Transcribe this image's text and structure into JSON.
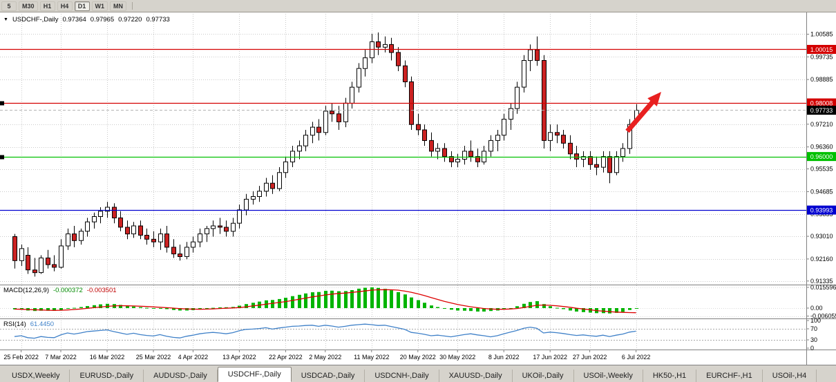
{
  "toolbar": {
    "periods": [
      {
        "label": "5",
        "active": false
      },
      {
        "label": "M30",
        "active": false
      },
      {
        "label": "H1",
        "active": false
      },
      {
        "label": "H4",
        "active": false
      },
      {
        "label": "D1",
        "active": true
      },
      {
        "label": "W1",
        "active": false
      },
      {
        "label": "MN",
        "active": false
      }
    ]
  },
  "chart_header": {
    "symbol_label": "USDCHF-,Daily",
    "open": "0.97364",
    "high": "0.97965",
    "low": "0.97220",
    "close": "0.97733"
  },
  "indicators": {
    "macd": {
      "label": "MACD(12,26,9)",
      "value_main": "-0.000372",
      "value_signal": "-0.003501",
      "axis_labels": [
        "0.015596",
        "0.00",
        "-0.006055"
      ],
      "histogram_color": "#00b400",
      "signal_color": "#dd0000"
    },
    "rsi": {
      "label": "RSI(14)",
      "value": "61.4450",
      "axis_labels": [
        "100",
        "70",
        "30",
        "0"
      ],
      "levels": [
        70,
        30
      ],
      "line_color": "#3e80c8"
    }
  },
  "tabs": {
    "items": [
      "USDX,Weekly",
      "EURUSD-,Daily",
      "AUDUSD-,Daily",
      "USDCHF-,Daily",
      "USDCAD-,Daily",
      "USDCNH-,Daily",
      "XAUUSD-,Daily",
      "UKOil-,Daily",
      "USOil-,Weekly",
      "HK50-,H1",
      "EURCHF-,H1",
      "USOil-,H4"
    ],
    "active_index": 3
  },
  "chart_data": {
    "type": "candlestick",
    "symbol": "USDCHF-,Daily",
    "timeframe": "Daily",
    "colors": {
      "bull": "#ffffff",
      "bear": "#cc2222",
      "wick": "#000000",
      "grid": "#c9c9c9"
    },
    "price_axis": {
      "labels": [
        "1.00585",
        "0.99735",
        "0.98885",
        "0.97210",
        "0.96360",
        "0.95535",
        "0.94685",
        "0.93835",
        "0.93010",
        "0.92160",
        "0.91335"
      ],
      "view_max": 1.014,
      "view_min": 0.912
    },
    "x_ticks": [
      {
        "label": "25 Feb 2022",
        "index": 1
      },
      {
        "label": "7 Mar 2022",
        "index": 7
      },
      {
        "label": "16 Mar 2022",
        "index": 14
      },
      {
        "label": "25 Mar 2022",
        "index": 21
      },
      {
        "label": "4 Apr 2022",
        "index": 27
      },
      {
        "label": "13 Apr 2022",
        "index": 34
      },
      {
        "label": "22 Apr 2022",
        "index": 41
      },
      {
        "label": "2 May 2022",
        "index": 47
      },
      {
        "label": "11 May 2022",
        "index": 54
      },
      {
        "label": "20 May 2022",
        "index": 61
      },
      {
        "label": "30 May 2022",
        "index": 67
      },
      {
        "label": "8 Jun 2022",
        "index": 74
      },
      {
        "label": "17 Jun 2022",
        "index": 81
      },
      {
        "label": "27 Jun 2022",
        "index": 87
      },
      {
        "label": "6 Jul 2022",
        "index": 94
      }
    ],
    "hlines": [
      {
        "price": 1.00015,
        "label": "1.00015",
        "color": "#d40000",
        "handles": false
      },
      {
        "price": 0.98008,
        "label": "0.98008",
        "color": "#d40000",
        "handles": true
      },
      {
        "price": 0.96,
        "label": "0.96000",
        "color": "#00c000",
        "handles": true
      },
      {
        "price": 0.93993,
        "label": "0.93993",
        "color": "#0000d0",
        "handles": false
      }
    ],
    "current_price": {
      "value": 0.97733,
      "label": "0.97733",
      "box_color": "#000000"
    },
    "arrow_annotation": {
      "color": "#e82020",
      "description": "red up arrow toward 0.98008 resistance"
    },
    "candles": [
      [
        0.93,
        0.931,
        0.918,
        0.921
      ],
      [
        0.921,
        0.927,
        0.919,
        0.9255
      ],
      [
        0.923,
        0.926,
        0.916,
        0.9175
      ],
      [
        0.9175,
        0.922,
        0.915,
        0.9165
      ],
      [
        0.9165,
        0.923,
        0.916,
        0.922
      ],
      [
        0.922,
        0.925,
        0.918,
        0.9195
      ],
      [
        0.9195,
        0.923,
        0.917,
        0.9185
      ],
      [
        0.9185,
        0.929,
        0.918,
        0.9265
      ],
      [
        0.9265,
        0.933,
        0.925,
        0.931
      ],
      [
        0.931,
        0.934,
        0.926,
        0.9285
      ],
      [
        0.9285,
        0.933,
        0.927,
        0.932
      ],
      [
        0.932,
        0.937,
        0.93,
        0.9355
      ],
      [
        0.9355,
        0.939,
        0.933,
        0.9375
      ],
      [
        0.9375,
        0.941,
        0.935,
        0.9395
      ],
      [
        0.9395,
        0.943,
        0.937,
        0.941
      ],
      [
        0.941,
        0.9425,
        0.935,
        0.937
      ],
      [
        0.937,
        0.9395,
        0.932,
        0.9335
      ],
      [
        0.9335,
        0.936,
        0.929,
        0.931
      ],
      [
        0.931,
        0.9355,
        0.9295,
        0.934
      ],
      [
        0.934,
        0.936,
        0.929,
        0.9305
      ],
      [
        0.9305,
        0.933,
        0.927,
        0.929
      ],
      [
        0.929,
        0.932,
        0.926,
        0.928
      ],
      [
        0.928,
        0.933,
        0.925,
        0.931
      ],
      [
        0.931,
        0.934,
        0.924,
        0.926
      ],
      [
        0.926,
        0.929,
        0.922,
        0.9235
      ],
      [
        0.9235,
        0.927,
        0.921,
        0.9225
      ],
      [
        0.9225,
        0.928,
        0.9215,
        0.926
      ],
      [
        0.926,
        0.93,
        0.924,
        0.928
      ],
      [
        0.928,
        0.933,
        0.926,
        0.931
      ],
      [
        0.931,
        0.934,
        0.928,
        0.933
      ],
      [
        0.933,
        0.936,
        0.93,
        0.934
      ],
      [
        0.934,
        0.937,
        0.931,
        0.9335
      ],
      [
        0.9335,
        0.936,
        0.93,
        0.932
      ],
      [
        0.932,
        0.937,
        0.93,
        0.935
      ],
      [
        0.935,
        0.942,
        0.933,
        0.94
      ],
      [
        0.94,
        0.946,
        0.938,
        0.944
      ],
      [
        0.944,
        0.947,
        0.942,
        0.945
      ],
      [
        0.945,
        0.949,
        0.943,
        0.947
      ],
      [
        0.947,
        0.952,
        0.945,
        0.95
      ],
      [
        0.95,
        0.953,
        0.946,
        0.948
      ],
      [
        0.948,
        0.956,
        0.947,
        0.954
      ],
      [
        0.954,
        0.96,
        0.952,
        0.958
      ],
      [
        0.958,
        0.964,
        0.956,
        0.962
      ],
      [
        0.962,
        0.966,
        0.959,
        0.964
      ],
      [
        0.964,
        0.97,
        0.962,
        0.968
      ],
      [
        0.968,
        0.973,
        0.965,
        0.971
      ],
      [
        0.971,
        0.974,
        0.966,
        0.969
      ],
      [
        0.969,
        0.979,
        0.968,
        0.977
      ],
      [
        0.977,
        0.98,
        0.973,
        0.976
      ],
      [
        0.976,
        0.979,
        0.97,
        0.973
      ],
      [
        0.973,
        0.982,
        0.971,
        0.98
      ],
      [
        0.98,
        0.988,
        0.978,
        0.986
      ],
      [
        0.986,
        0.995,
        0.984,
        0.993
      ],
      [
        0.993,
        1.0,
        0.99,
        0.997
      ],
      [
        0.997,
        1.006,
        0.995,
        1.003
      ],
      [
        1.003,
        1.0065,
        0.998,
        1.001
      ],
      [
        1.001,
        1.005,
        0.999,
        1.002
      ],
      [
        1.002,
        1.0045,
        0.996,
        0.999
      ],
      [
        0.999,
        1.001,
        0.992,
        0.994
      ],
      [
        0.994,
        0.996,
        0.986,
        0.988
      ],
      [
        0.988,
        0.99,
        0.97,
        0.972
      ],
      [
        0.972,
        0.976,
        0.968,
        0.97
      ],
      [
        0.97,
        0.972,
        0.964,
        0.966
      ],
      [
        0.966,
        0.969,
        0.96,
        0.962
      ],
      [
        0.962,
        0.965,
        0.959,
        0.963
      ],
      [
        0.963,
        0.965,
        0.958,
        0.96
      ],
      [
        0.96,
        0.962,
        0.956,
        0.958
      ],
      [
        0.958,
        0.961,
        0.956,
        0.959
      ],
      [
        0.959,
        0.964,
        0.957,
        0.962
      ],
      [
        0.962,
        0.966,
        0.958,
        0.96
      ],
      [
        0.96,
        0.963,
        0.956,
        0.958
      ],
      [
        0.958,
        0.964,
        0.957,
        0.962
      ],
      [
        0.962,
        0.968,
        0.96,
        0.966
      ],
      [
        0.966,
        0.97,
        0.962,
        0.968
      ],
      [
        0.968,
        0.976,
        0.966,
        0.974
      ],
      [
        0.974,
        0.98,
        0.97,
        0.978
      ],
      [
        0.978,
        0.988,
        0.976,
        0.986
      ],
      [
        0.986,
        0.998,
        0.984,
        0.996
      ],
      [
        0.996,
        1.002,
        0.992,
        1.0
      ],
      [
        1.0,
        1.005,
        0.994,
        0.996
      ],
      [
        0.996,
        0.998,
        0.963,
        0.966
      ],
      [
        0.966,
        0.972,
        0.962,
        0.969
      ],
      [
        0.969,
        0.972,
        0.965,
        0.968
      ],
      [
        0.968,
        0.97,
        0.963,
        0.965
      ],
      [
        0.965,
        0.968,
        0.959,
        0.961
      ],
      [
        0.961,
        0.964,
        0.956,
        0.959
      ],
      [
        0.959,
        0.962,
        0.956,
        0.96
      ],
      [
        0.96,
        0.962,
        0.955,
        0.957
      ],
      [
        0.957,
        0.96,
        0.953,
        0.956
      ],
      [
        0.956,
        0.962,
        0.954,
        0.96
      ],
      [
        0.96,
        0.962,
        0.95,
        0.954
      ],
      [
        0.954,
        0.962,
        0.953,
        0.96
      ],
      [
        0.96,
        0.965,
        0.958,
        0.963
      ],
      [
        0.963,
        0.974,
        0.961,
        0.972
      ],
      [
        0.97364,
        0.97965,
        0.9722,
        0.97733
      ]
    ],
    "macd": {
      "view_max": 0.0156,
      "view_min": -0.006055,
      "histogram": [
        -0.001,
        -0.0012,
        -0.0018,
        -0.0022,
        -0.002,
        -0.002,
        -0.0021,
        -0.0015,
        -0.0005,
        0.0002,
        0.0008,
        0.0015,
        0.0022,
        0.0028,
        0.0032,
        0.003,
        0.0024,
        0.0016,
        0.0012,
        0.0007,
        0.0002,
        -0.0002,
        -0.0003,
        -0.0008,
        -0.0014,
        -0.0018,
        -0.0018,
        -0.0015,
        -0.001,
        -0.0004,
        0.0002,
        0.0005,
        0.0006,
        0.0009,
        0.0018,
        0.003,
        0.004,
        0.0049,
        0.0058,
        0.0061,
        0.0068,
        0.0078,
        0.009,
        0.01,
        0.011,
        0.0119,
        0.0121,
        0.013,
        0.0131,
        0.0127,
        0.0128,
        0.0135,
        0.0146,
        0.0153,
        0.0156,
        0.0152,
        0.0145,
        0.0134,
        0.012,
        0.0103,
        0.008,
        0.006,
        0.004,
        0.002,
        0.0008,
        -0.0002,
        -0.0012,
        -0.0018,
        -0.002,
        -0.0022,
        -0.0026,
        -0.0026,
        -0.0022,
        -0.0018,
        -0.001,
        0.0,
        0.0014,
        0.0032,
        0.0046,
        0.0052,
        0.003,
        0.0014,
        0.0002,
        -0.0008,
        -0.0018,
        -0.0026,
        -0.003,
        -0.0034,
        -0.0038,
        -0.0038,
        -0.004,
        -0.0036,
        -0.0028,
        -0.0014,
        -0.000372
      ],
      "signal": [
        -0.0008,
        -0.0009,
        -0.0011,
        -0.0013,
        -0.0014,
        -0.0016,
        -0.0017,
        -0.0016,
        -0.0014,
        -0.0011,
        -0.0007,
        -0.0002,
        0.0003,
        0.0008,
        0.0013,
        0.0016,
        0.0018,
        0.0017,
        0.0016,
        0.0014,
        0.0012,
        0.0009,
        0.0006,
        0.0003,
        0.0,
        -0.0004,
        -0.0007,
        -0.0008,
        -0.0009,
        -0.0008,
        -0.0006,
        -0.0003,
        -0.0001,
        0.0001,
        0.0004,
        0.0009,
        0.0016,
        0.0022,
        0.0029,
        0.0036,
        0.0042,
        0.0049,
        0.0057,
        0.0066,
        0.0075,
        0.0084,
        0.0091,
        0.0099,
        0.0105,
        0.011,
        0.0113,
        0.0118,
        0.0123,
        0.0129,
        0.0135,
        0.0138,
        0.0139,
        0.0138,
        0.0135,
        0.0128,
        0.0119,
        0.0107,
        0.0094,
        0.0079,
        0.0065,
        0.0051,
        0.0039,
        0.0027,
        0.0018,
        0.001,
        0.0003,
        -0.0003,
        -0.0007,
        -0.0009,
        -0.0009,
        -0.0007,
        -0.0003,
        0.0004,
        0.0013,
        0.0021,
        0.0023,
        0.0021,
        0.0017,
        0.0012,
        0.0006,
        -0.0001,
        -0.0007,
        -0.0012,
        -0.0019,
        -0.0023,
        -0.0027,
        -0.003,
        -0.0032,
        -0.0034,
        -0.003501
      ]
    },
    "rsi": {
      "values": [
        42,
        45,
        38,
        36,
        42,
        39,
        38,
        48,
        55,
        51,
        55,
        60,
        62,
        64,
        66,
        60,
        55,
        50,
        54,
        49,
        46,
        44,
        49,
        43,
        39,
        37,
        43,
        47,
        52,
        55,
        57,
        55,
        52,
        56,
        63,
        68,
        69,
        71,
        74,
        69,
        73,
        76,
        79,
        80,
        82,
        83,
        79,
        83,
        80,
        76,
        79,
        83,
        85,
        87,
        85,
        82,
        83,
        78,
        73,
        68,
        57,
        54,
        50,
        45,
        47,
        44,
        41,
        45,
        49,
        52,
        48,
        45,
        41,
        45,
        52,
        58,
        64,
        72,
        76,
        72,
        55,
        58,
        56,
        53,
        49,
        46,
        48,
        45,
        43,
        47,
        42,
        47,
        51,
        58,
        61.445
      ]
    }
  }
}
